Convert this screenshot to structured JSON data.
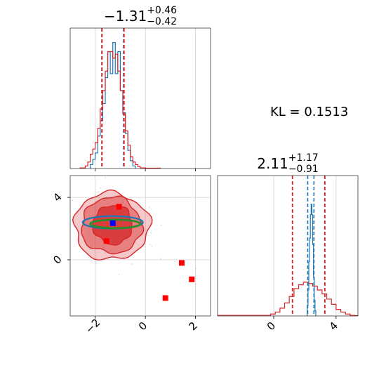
{
  "colors": {
    "red": "#d62728",
    "blue": "#1f77b4",
    "green": "#2a8c2a",
    "marker_red": "#ff0000",
    "marker_blue": "#0000ff",
    "grid": "#cfcfcf",
    "scatter": "#b0b0b0"
  },
  "kl_text": "KL = 0.1513",
  "chart_data": [
    {
      "type": "histogram",
      "panel": "marginal-x",
      "title": "−1.31",
      "title_sup": "+0.46",
      "title_sub": "−0.42",
      "xlim": [
        -3.0,
        2.6
      ],
      "xticks": [
        -2,
        0,
        2
      ],
      "grid": true,
      "quantiles_red": [
        -1.73,
        -0.85
      ],
      "quantiles_blue": [
        -1.74,
        -0.87
      ],
      "series": [
        {
          "color": "blue",
          "bin_edges": [
            -2.2,
            -2.1,
            -2.0,
            -1.9,
            -1.8,
            -1.7,
            -1.6,
            -1.5,
            -1.4,
            -1.3,
            -1.2,
            -1.1,
            -1.0,
            -0.9,
            -0.8,
            -0.7,
            -0.6,
            -0.5,
            -0.4
          ],
          "counts": [
            0.03,
            0.07,
            0.12,
            0.25,
            0.37,
            0.5,
            0.7,
            0.9,
            0.73,
            0.97,
            0.73,
            0.9,
            0.6,
            0.43,
            0.27,
            0.14,
            0.06,
            0.02
          ]
        },
        {
          "color": "red",
          "bin_edges": [
            -2.6,
            -2.4,
            -2.3,
            -2.2,
            -2.1,
            -2.0,
            -1.9,
            -1.8,
            -1.7,
            -1.6,
            -1.5,
            -1.4,
            -1.3,
            -1.2,
            -1.1,
            -1.0,
            -0.9,
            -0.8,
            -0.7,
            -0.6,
            -0.5,
            -0.4,
            -0.3,
            -0.2,
            0.0,
            0.6
          ],
          "counts": [
            0.005,
            0.02,
            0.05,
            0.11,
            0.15,
            0.2,
            0.31,
            0.46,
            0.6,
            0.75,
            0.9,
            0.9,
            0.85,
            0.88,
            0.75,
            0.6,
            0.42,
            0.29,
            0.18,
            0.09,
            0.05,
            0.03,
            0.015,
            0.005,
            0.003
          ]
        }
      ]
    },
    {
      "type": "contour",
      "panel": "joint",
      "xlim": [
        -3.0,
        2.6
      ],
      "ylim": [
        -3.6,
        5.4
      ],
      "xticks": [
        -2,
        0,
        2
      ],
      "yticks": [
        0,
        4
      ],
      "grid": true,
      "contours_red": [
        {
          "level": "outer",
          "cx": -1.35,
          "cy": 2.15,
          "rx": 1.5,
          "ry": 2.15,
          "fill_opacity": 0.25
        },
        {
          "level": "middle",
          "cx": -1.35,
          "cy": 2.2,
          "rx": 1.2,
          "ry": 1.8,
          "fill_opacity": 0.45
        },
        {
          "level": "inner",
          "cx": -1.3,
          "cy": 2.25,
          "rx": 0.78,
          "ry": 1.25,
          "fill_opacity": 0.75
        }
      ],
      "ellipses_blue": {
        "cx": -1.3,
        "cy": 2.4,
        "rx": 1.2,
        "ry": 0.4
      },
      "ellipses_green": {
        "cx": -1.2,
        "cy": 2.3,
        "rx": 1.0,
        "ry": 0.27
      },
      "points_red": [
        {
          "x": -1.05,
          "y": 3.4
        },
        {
          "x": -1.55,
          "y": 1.2
        },
        {
          "x": 1.45,
          "y": -0.2
        },
        {
          "x": 1.85,
          "y": -1.25
        },
        {
          "x": 0.8,
          "y": -2.45
        }
      ],
      "point_blue": {
        "x": -1.3,
        "y": 2.35
      }
    },
    {
      "type": "histogram",
      "panel": "marginal-y",
      "title": "2.11",
      "title_sup": "+1.17",
      "title_sub": "−0.91",
      "xlim": [
        -3.6,
        5.4
      ],
      "xticks": [
        0,
        4
      ],
      "grid": true,
      "quantiles_red": [
        1.2,
        3.28
      ],
      "quantiles_blue": [
        2.18,
        2.58
      ],
      "series": [
        {
          "color": "blue",
          "bin_edges": [
            2.15,
            2.2,
            2.25,
            2.3,
            2.35,
            2.4,
            2.45,
            2.5,
            2.55,
            2.6,
            2.65,
            2.7
          ],
          "counts": [
            0.08,
            0.2,
            0.42,
            0.6,
            0.78,
            0.86,
            0.78,
            0.55,
            0.3,
            0.12,
            0.04
          ]
        },
        {
          "color": "red",
          "bin_edges": [
            -3.6,
            -0.2,
            0.1,
            0.4,
            0.7,
            1.0,
            1.3,
            1.6,
            1.9,
            2.2,
            2.5,
            2.8,
            3.1,
            3.4,
            3.7,
            4.0,
            4.3,
            4.6,
            4.9,
            5.2,
            5.4
          ],
          "counts": [
            0.005,
            0.015,
            0.03,
            0.06,
            0.1,
            0.15,
            0.21,
            0.24,
            0.26,
            0.25,
            0.23,
            0.2,
            0.17,
            0.13,
            0.09,
            0.05,
            0.03,
            0.015,
            0.005,
            0.002
          ]
        }
      ]
    }
  ]
}
